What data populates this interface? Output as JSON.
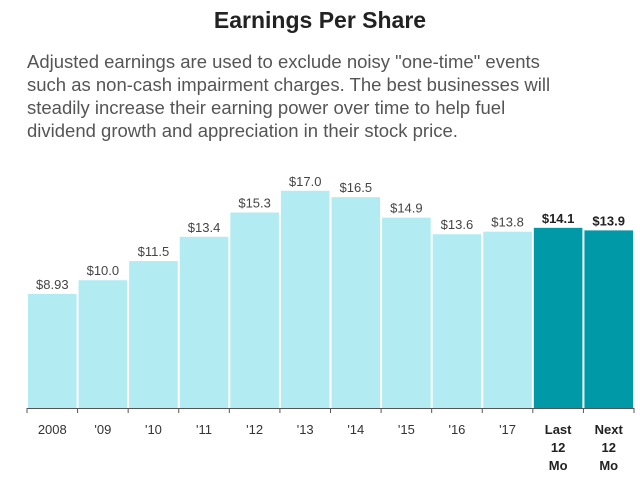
{
  "header": {
    "title": "Earnings Per Share",
    "description_lines": [
      "Adjusted earnings are used to exclude noisy \"one-time\" events",
      "such as non-cash impairment charges. The best businesses will",
      "steadily increase their earning power over time to help fuel",
      "dividend growth and appreciation in their stock price."
    ]
  },
  "colors": {
    "historical_bar": "#b2ebf2",
    "highlight_bar": "#0099a8",
    "axis": "#555555"
  },
  "chart_data": {
    "type": "bar",
    "title": "Earnings Per Share",
    "xlabel": "",
    "ylabel": "",
    "ylim": [
      0,
      18
    ],
    "grid": false,
    "categories": [
      "2008",
      "'09",
      "'10",
      "'11",
      "'12",
      "'13",
      "'14",
      "'15",
      "'16",
      "'17",
      "Last 12 Mo",
      "Next 12 Mo"
    ],
    "category_lines": [
      [
        "2008"
      ],
      [
        "'09"
      ],
      [
        "'10"
      ],
      [
        "'11"
      ],
      [
        "'12"
      ],
      [
        "'13"
      ],
      [
        "'14"
      ],
      [
        "'15"
      ],
      [
        "'16"
      ],
      [
        "'17"
      ],
      [
        "Last",
        "12",
        "Mo"
      ],
      [
        "Next",
        "12",
        "Mo"
      ]
    ],
    "values": [
      8.93,
      10.0,
      11.5,
      13.4,
      15.3,
      17.0,
      16.5,
      14.9,
      13.6,
      13.8,
      14.1,
      13.9
    ],
    "value_labels": [
      "$8.93",
      "$10.0",
      "$11.5",
      "$13.4",
      "$15.3",
      "$17.0",
      "$16.5",
      "$14.9",
      "$13.6",
      "$13.8",
      "$14.1",
      "$13.9"
    ],
    "highlighted": [
      false,
      false,
      false,
      false,
      false,
      false,
      false,
      false,
      false,
      false,
      true,
      true
    ]
  }
}
